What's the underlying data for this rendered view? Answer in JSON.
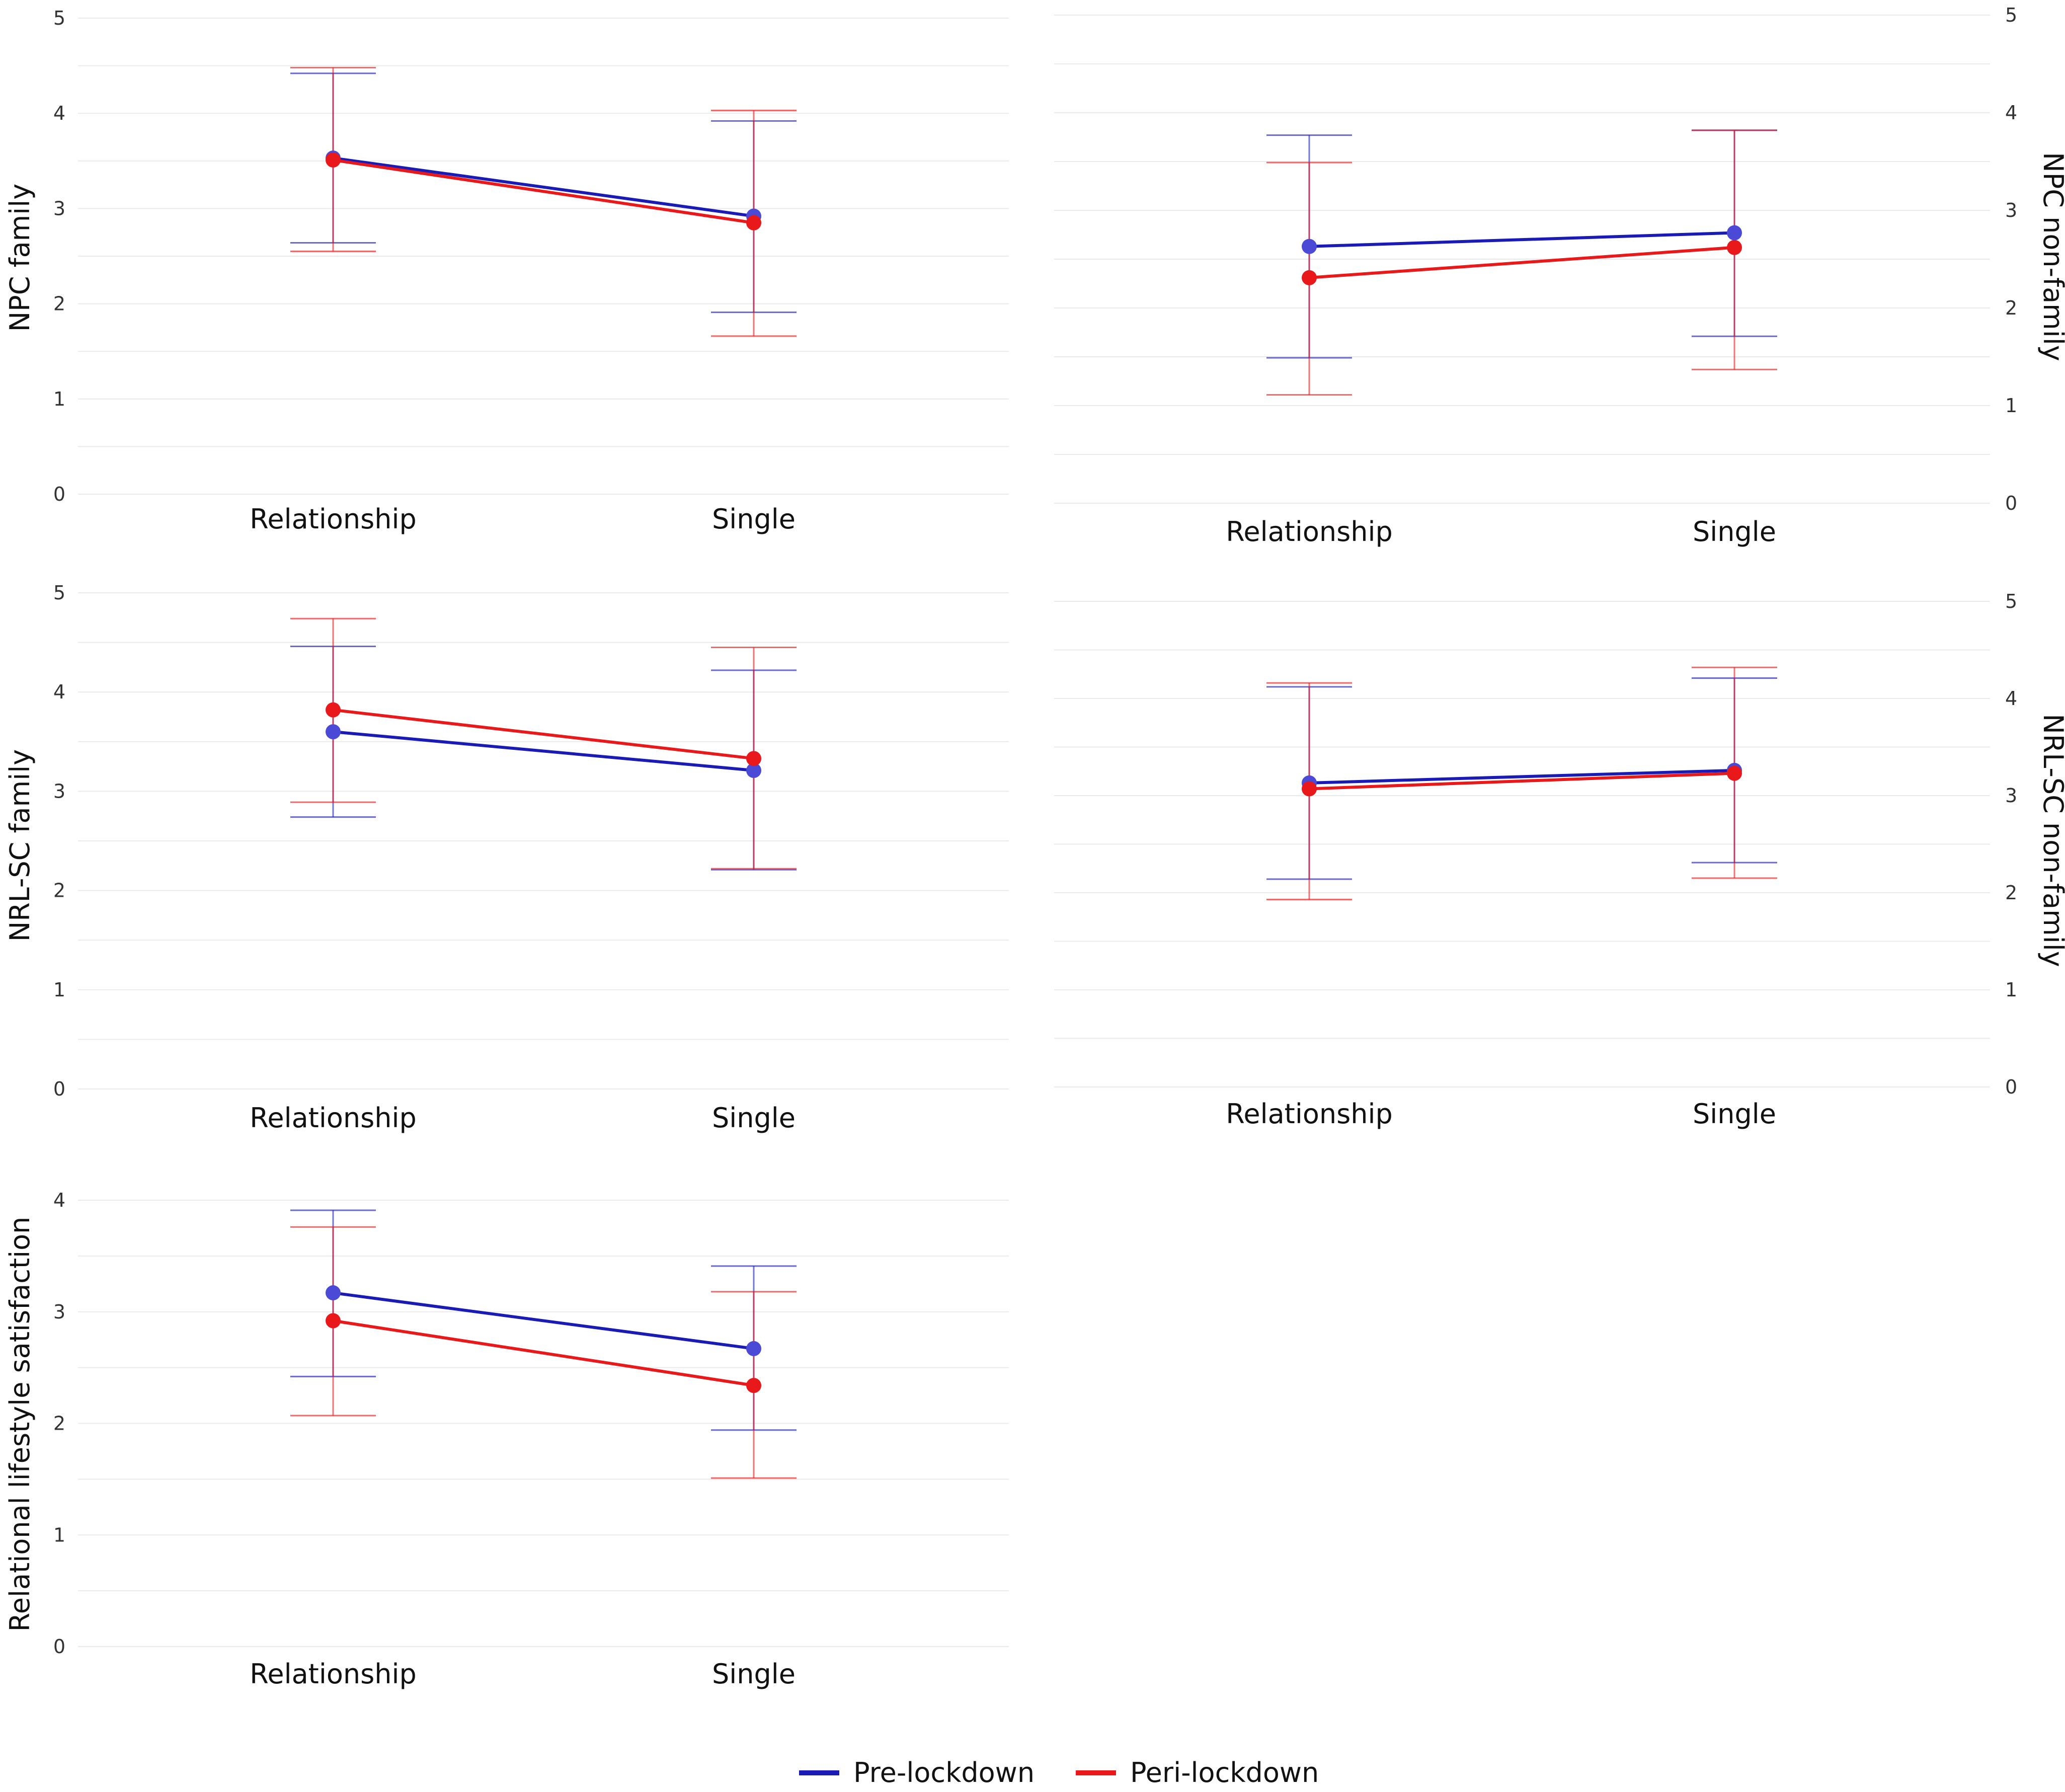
{
  "chart_data": [
    {
      "type": "line",
      "ylabel": "NPC family",
      "categories": [
        "Relationship",
        "Single"
      ],
      "ylim": [
        0,
        5
      ],
      "yticks": [
        0,
        1,
        2,
        3,
        4,
        5
      ],
      "axis_side": "left",
      "series": [
        {
          "name": "Pre-lockdown",
          "values": [
            3.53,
            2.92
          ],
          "err_low": [
            2.64,
            1.91
          ],
          "err_high": [
            4.42,
            3.92
          ]
        },
        {
          "name": "Peri-lockdown",
          "values": [
            3.51,
            2.85
          ],
          "err_low": [
            2.55,
            1.66
          ],
          "err_high": [
            4.48,
            4.03
          ]
        }
      ]
    },
    {
      "type": "line",
      "ylabel": "NPC non-family",
      "categories": [
        "Relationship",
        "Single"
      ],
      "ylim": [
        0,
        5
      ],
      "yticks": [
        0,
        1,
        2,
        3,
        4,
        5
      ],
      "axis_side": "right",
      "series": [
        {
          "name": "Pre-lockdown",
          "values": [
            2.63,
            2.77
          ],
          "err_low": [
            1.49,
            1.71
          ],
          "err_high": [
            3.77,
            3.82
          ]
        },
        {
          "name": "Peri-lockdown",
          "values": [
            2.31,
            2.62
          ],
          "err_low": [
            1.11,
            1.37
          ],
          "err_high": [
            3.49,
            3.82
          ]
        }
      ]
    },
    {
      "type": "line",
      "ylabel": "NRL-SC family",
      "categories": [
        "Relationship",
        "Single"
      ],
      "ylim": [
        0,
        5
      ],
      "yticks": [
        0,
        1,
        2,
        3,
        4,
        5
      ],
      "axis_side": "left",
      "series": [
        {
          "name": "Pre-lockdown",
          "values": [
            3.6,
            3.21
          ],
          "err_low": [
            2.74,
            2.21
          ],
          "err_high": [
            4.46,
            4.22
          ]
        },
        {
          "name": "Peri-lockdown",
          "values": [
            3.82,
            3.33
          ],
          "err_low": [
            2.89,
            2.22
          ],
          "err_high": [
            4.74,
            4.45
          ]
        }
      ]
    },
    {
      "type": "line",
      "ylabel": "NRL-SC non-family",
      "categories": [
        "Relationship",
        "Single"
      ],
      "ylim": [
        0,
        5
      ],
      "yticks": [
        0,
        1,
        2,
        3,
        4,
        5
      ],
      "axis_side": "right",
      "series": [
        {
          "name": "Pre-lockdown",
          "values": [
            3.13,
            3.26
          ],
          "err_low": [
            2.14,
            2.31
          ],
          "err_high": [
            4.12,
            4.21
          ]
        },
        {
          "name": "Peri-lockdown",
          "values": [
            3.07,
            3.23
          ],
          "err_low": [
            1.93,
            2.15
          ],
          "err_high": [
            4.16,
            4.32
          ]
        }
      ]
    },
    {
      "type": "line",
      "ylabel": "Relational lifestyle satisfaction",
      "categories": [
        "Relationship",
        "Single"
      ],
      "ylim": [
        0,
        4
      ],
      "yticks": [
        0,
        1,
        2,
        3,
        4
      ],
      "axis_side": "left",
      "series": [
        {
          "name": "Pre-lockdown",
          "values": [
            3.17,
            2.67
          ],
          "err_low": [
            2.42,
            1.94
          ],
          "err_high": [
            3.91,
            3.41
          ]
        },
        {
          "name": "Peri-lockdown",
          "values": [
            2.92,
            2.34
          ],
          "err_low": [
            2.07,
            1.51
          ],
          "err_high": [
            3.76,
            3.18
          ]
        }
      ]
    }
  ],
  "legend": [
    {
      "label": "Pre-lockdown",
      "color": "#1a1ab5"
    },
    {
      "label": "Peri-lockdown",
      "color": "#e8181b"
    }
  ],
  "colors": {
    "Pre-lockdown": "#1a1ab5",
    "Peri-lockdown": "#e8181b",
    "Pre-lockdown-marker": "#4a4ad6",
    "grid": "#eaeaea"
  }
}
